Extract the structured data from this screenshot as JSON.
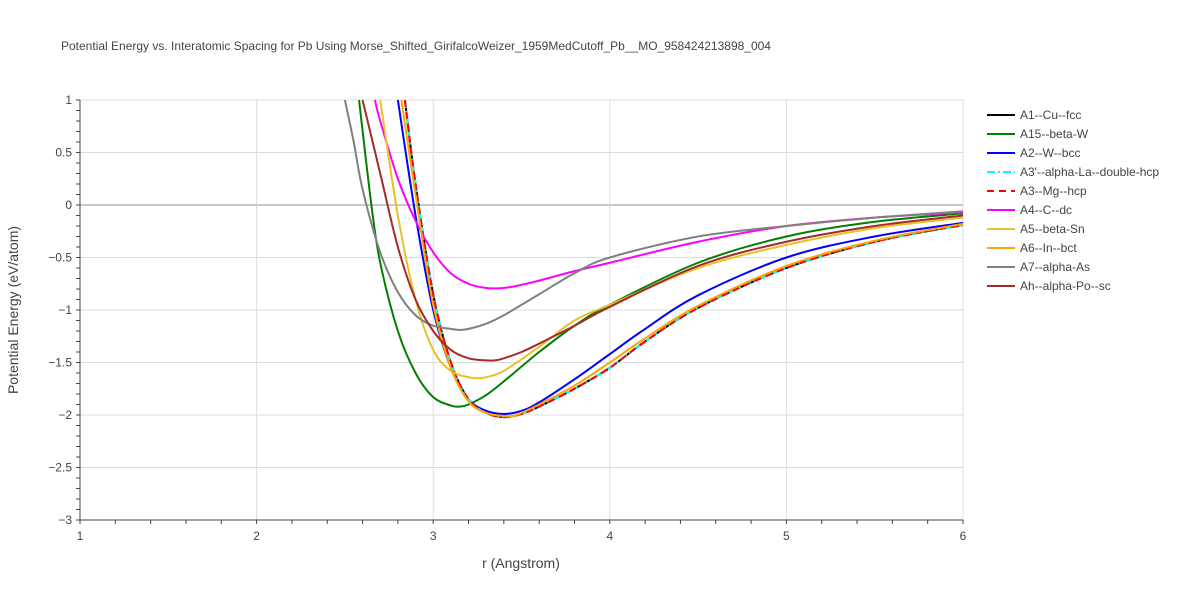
{
  "chart_data": {
    "type": "line",
    "title": "Potential Energy vs. Interatomic Spacing for Pb Using Morse_Shifted_GirifalcoWeizer_1959MedCutoff_Pb__MO_958424213898_004",
    "xlabel": "r (Angstrom)",
    "ylabel": "Potential Energy (eV/atom)",
    "xlim": [
      1,
      6
    ],
    "ylim": [
      -3,
      1
    ],
    "x_ticks": [
      1,
      2,
      3,
      4,
      5,
      6
    ],
    "x_tick_labels": [
      "1",
      "2",
      "3",
      "4",
      "5",
      "6"
    ],
    "y_ticks": [
      1,
      0.5,
      0,
      -0.5,
      -1,
      -1.5,
      -2,
      -2.5,
      -3
    ],
    "y_tick_labels": [
      "1",
      "0.5",
      "0",
      "−0.5",
      "−1",
      "−1.5",
      "−2",
      "−2.5",
      "−3"
    ],
    "grid": true,
    "legend_position": "right",
    "series": [
      {
        "name": "A1--Cu--fcc",
        "color": "#000000",
        "dash": "solid",
        "x": [
          2.84,
          2.9,
          3.0,
          3.1,
          3.2,
          3.3,
          3.4,
          3.5,
          3.6,
          3.8,
          4.0,
          4.2,
          4.5,
          5.0,
          5.5,
          6.0
        ],
        "y": [
          1.0,
          0.2,
          -0.85,
          -1.5,
          -1.85,
          -1.98,
          -2.02,
          -1.99,
          -1.92,
          -1.75,
          -1.55,
          -1.3,
          -0.98,
          -0.6,
          -0.35,
          -0.19
        ]
      },
      {
        "name": "A15--beta-W",
        "color": "#008000",
        "dash": "solid",
        "x": [
          2.58,
          2.65,
          2.7,
          2.8,
          2.9,
          3.0,
          3.1,
          3.15,
          3.2,
          3.3,
          3.4,
          3.6,
          3.8,
          4.0,
          4.5,
          5.0,
          5.5,
          6.0
        ],
        "y": [
          1.0,
          0.0,
          -0.55,
          -1.2,
          -1.6,
          -1.83,
          -1.91,
          -1.92,
          -1.9,
          -1.81,
          -1.68,
          -1.4,
          -1.15,
          -0.95,
          -0.55,
          -0.3,
          -0.16,
          -0.08
        ]
      },
      {
        "name": "A2--W--bcc",
        "color": "#0000ff",
        "dash": "solid",
        "x": [
          2.8,
          2.9,
          3.0,
          3.1,
          3.2,
          3.3,
          3.4,
          3.5,
          3.6,
          3.8,
          4.0,
          4.2,
          4.5,
          5.0,
          5.5,
          6.0
        ],
        "y": [
          1.0,
          -0.1,
          -1.0,
          -1.55,
          -1.85,
          -1.96,
          -1.99,
          -1.96,
          -1.88,
          -1.66,
          -1.42,
          -1.18,
          -0.86,
          -0.5,
          -0.3,
          -0.17
        ]
      },
      {
        "name": "A3'--alpha-La--double-hcp",
        "color": "#00ffff",
        "dash": "dashdot",
        "x": [
          2.84,
          2.9,
          3.0,
          3.1,
          3.2,
          3.3,
          3.4,
          3.5,
          3.6,
          3.8,
          4.0,
          4.2,
          4.5,
          5.0,
          5.5,
          6.0
        ],
        "y": [
          1.0,
          0.2,
          -0.85,
          -1.5,
          -1.85,
          -1.98,
          -2.02,
          -1.99,
          -1.92,
          -1.75,
          -1.55,
          -1.3,
          -0.98,
          -0.6,
          -0.35,
          -0.19
        ]
      },
      {
        "name": "A3--Mg--hcp",
        "color": "#ff0000",
        "dash": "dash",
        "x": [
          2.84,
          2.9,
          3.0,
          3.1,
          3.2,
          3.3,
          3.4,
          3.5,
          3.6,
          3.8,
          4.0,
          4.2,
          4.5,
          5.0,
          5.5,
          6.0
        ],
        "y": [
          1.0,
          0.2,
          -0.85,
          -1.5,
          -1.85,
          -1.98,
          -2.02,
          -1.99,
          -1.92,
          -1.75,
          -1.55,
          -1.3,
          -0.98,
          -0.6,
          -0.35,
          -0.19
        ]
      },
      {
        "name": "A4--C--dc",
        "color": "#ff00ff",
        "dash": "solid",
        "x": [
          2.67,
          2.7,
          2.8,
          2.9,
          3.0,
          3.1,
          3.2,
          3.3,
          3.4,
          3.5,
          3.6,
          3.8,
          4.0,
          4.5,
          5.0,
          5.5,
          6.0
        ],
        "y": [
          1.0,
          0.8,
          0.25,
          -0.15,
          -0.45,
          -0.65,
          -0.75,
          -0.79,
          -0.79,
          -0.76,
          -0.72,
          -0.63,
          -0.55,
          -0.35,
          -0.2,
          -0.12,
          -0.07
        ]
      },
      {
        "name": "A5--beta-Sn",
        "color": "#e6c229",
        "dash": "solid",
        "x": [
          2.7,
          2.8,
          2.9,
          3.0,
          3.1,
          3.2,
          3.25,
          3.3,
          3.4,
          3.6,
          3.8,
          4.0,
          4.5,
          5.0,
          5.5,
          6.0
        ],
        "y": [
          1.0,
          -0.1,
          -0.9,
          -1.38,
          -1.58,
          -1.64,
          -1.65,
          -1.64,
          -1.58,
          -1.35,
          -1.1,
          -0.95,
          -0.6,
          -0.38,
          -0.22,
          -0.12
        ]
      },
      {
        "name": "A6--In--bct",
        "color": "#ffa500",
        "dash": "solid",
        "x": [
          2.82,
          2.9,
          3.0,
          3.1,
          3.2,
          3.3,
          3.4,
          3.45,
          3.5,
          3.6,
          3.8,
          4.0,
          4.2,
          4.5,
          5.0,
          5.5,
          6.0
        ],
        "y": [
          1.0,
          0.1,
          -0.95,
          -1.55,
          -1.87,
          -1.98,
          -2.01,
          -2.01,
          -1.98,
          -1.9,
          -1.72,
          -1.5,
          -1.27,
          -0.96,
          -0.58,
          -0.34,
          -0.18
        ]
      },
      {
        "name": "A7--alpha-As",
        "color": "#808080",
        "dash": "solid",
        "x": [
          2.5,
          2.55,
          2.6,
          2.7,
          2.8,
          2.9,
          3.0,
          3.1,
          3.15,
          3.2,
          3.3,
          3.4,
          3.6,
          3.8,
          4.0,
          4.5,
          5.0,
          5.5,
          6.0
        ],
        "y": [
          1.0,
          0.6,
          0.15,
          -0.45,
          -0.83,
          -1.05,
          -1.15,
          -1.18,
          -1.19,
          -1.18,
          -1.13,
          -1.05,
          -0.85,
          -0.65,
          -0.5,
          -0.3,
          -0.2,
          -0.12,
          -0.06
        ]
      },
      {
        "name": "Ah--alpha-Po--sc",
        "color": "#a52a2a",
        "dash": "solid",
        "x": [
          2.6,
          2.7,
          2.8,
          2.9,
          3.0,
          3.1,
          3.2,
          3.3,
          3.35,
          3.4,
          3.5,
          3.6,
          3.8,
          4.0,
          4.5,
          5.0,
          5.5,
          6.0
        ],
        "y": [
          1.0,
          0.3,
          -0.4,
          -0.9,
          -1.2,
          -1.38,
          -1.46,
          -1.48,
          -1.48,
          -1.46,
          -1.4,
          -1.32,
          -1.15,
          -0.97,
          -0.58,
          -0.35,
          -0.2,
          -0.1
        ]
      }
    ]
  }
}
